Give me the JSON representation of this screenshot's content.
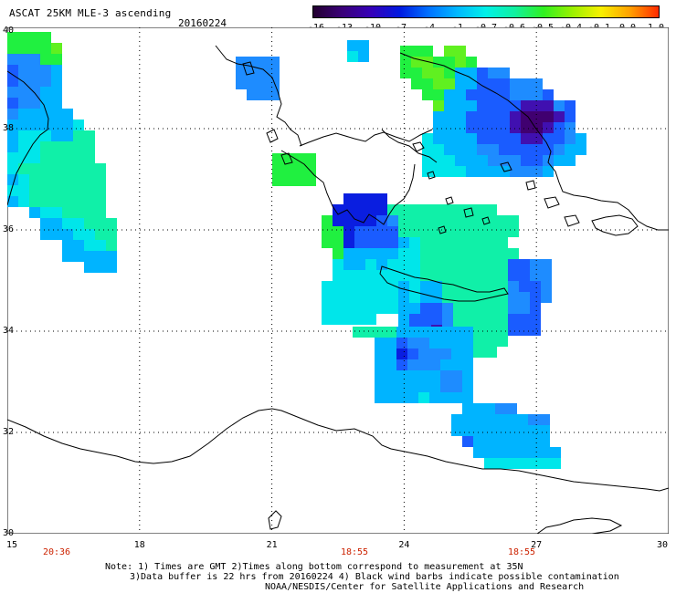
{
  "header": {
    "title": "ASCAT 25KM MLE-3 ascending",
    "date": "20160224"
  },
  "colorbar": {
    "ticks": [
      "-16",
      "-13",
      "-10",
      "-7",
      "-4",
      "-1",
      "-0.7",
      "-0.6",
      "-0.5",
      "-0.4",
      "-0.1",
      "0.0",
      "1.0"
    ],
    "colors": [
      "#230030",
      "#3a0078",
      "#3600b8",
      "#0018e0",
      "#0070ff",
      "#00b8ff",
      "#00f0e8",
      "#10f0a0",
      "#30f020",
      "#9af000",
      "#f8f000",
      "#ffa000",
      "#ff2a00"
    ]
  },
  "axes": {
    "lat_labels": [
      "40",
      "38",
      "36",
      "34",
      "32",
      "30"
    ],
    "lon_labels": [
      "15",
      "18",
      "21",
      "24",
      "27",
      "30"
    ],
    "times": [
      "20:36",
      "18:55",
      "18:55"
    ],
    "grid": "dotted"
  },
  "cell_colors": {
    "dark_purple": "#400070",
    "purple": "#4010b0",
    "blue": "#0a1ee0",
    "mid_blue": "#1a5cff",
    "blue_sky": "#1e8cff",
    "sky": "#00b4ff",
    "cyan": "#00e6ea",
    "teal": "#10f0a8",
    "green": "#20f040",
    "lime": "#60f020"
  },
  "notes": {
    "line1": "Note: 1) Times are GMT 2)Times along bottom correspond to measurement at 35N",
    "line2": "3)Data buffer is 22 hrs from 20160224 4) Black wind barbs indicate possible contamination",
    "line3": "NOAA/NESDIS/Center for Satellite Applications and Research"
  }
}
